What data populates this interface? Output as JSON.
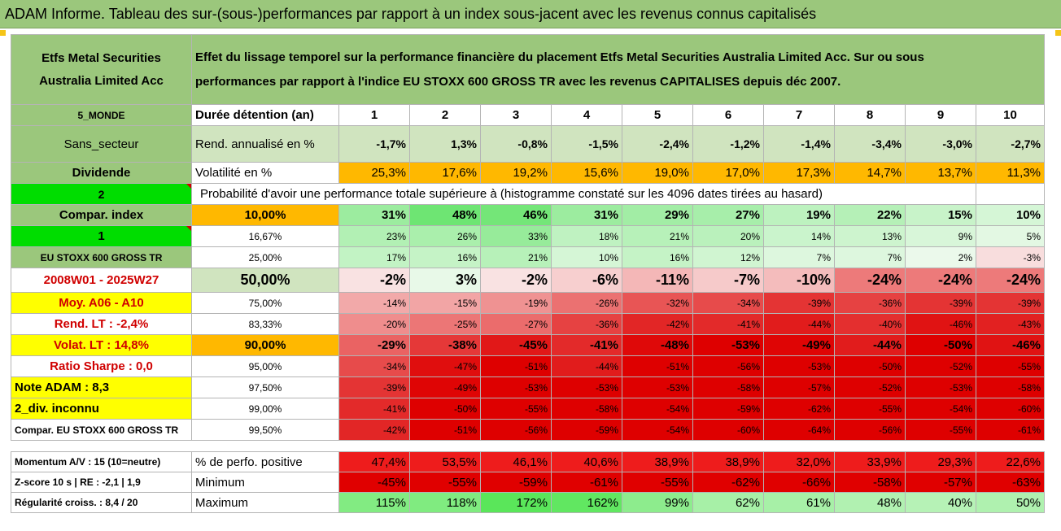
{
  "title": "ADAM Informe. Tableau des sur-(sous-)performances par rapport à un index sous-jacent avec les revenus connus capitalisés",
  "fund_name": [
    "Etfs Metal Securities",
    "Australia Limited Acc"
  ],
  "description": [
    "Effet du lissage temporel sur la performance financière du placement Etfs Metal Securities Australia Limited Acc. Sur ou sous",
    "performances par rapport à l'indice EU STOXX 600 GROSS TR avec les revenus CAPITALISES depuis déc 2007."
  ],
  "rows": {
    "duration": {
      "tag": "5_MONDE",
      "label": "Durée détention (an)",
      "values": [
        "1",
        "2",
        "3",
        "4",
        "5",
        "6",
        "7",
        "8",
        "9",
        "10"
      ]
    },
    "rend": {
      "tag": "Sans_secteur",
      "label": "Rend. annualisé en %",
      "values": [
        "-1,7%",
        "1,3%",
        "-0,8%",
        "-1,5%",
        "-2,4%",
        "-1,2%",
        "-1,4%",
        "-3,4%",
        "-3,0%",
        "-2,7%"
      ]
    },
    "vol": {
      "tag": "Dividende",
      "label": "Volatilité en %",
      "values": [
        "25,3%",
        "17,6%",
        "19,2%",
        "15,6%",
        "19,0%",
        "17,0%",
        "17,3%",
        "14,7%",
        "13,7%",
        "11,3%"
      ]
    },
    "prob": {
      "tag": "2",
      "label": "Probabilité d'avoir une performance totale supérieure à (histogramme constaté sur les 4096 dates tirées au hasard)"
    }
  },
  "quantile_rows": [
    {
      "tag": "Compar. index",
      "pct": "10,00%",
      "values": [
        "31%",
        "48%",
        "46%",
        "31%",
        "29%",
        "27%",
        "19%",
        "22%",
        "15%",
        "10%"
      ]
    },
    {
      "tag": "1",
      "pct": "16,67%",
      "values": [
        "23%",
        "26%",
        "33%",
        "18%",
        "21%",
        "20%",
        "14%",
        "13%",
        "9%",
        "5%"
      ]
    },
    {
      "tag": "EU STOXX 600 GROSS TR",
      "pct": "25,00%",
      "values": [
        "17%",
        "16%",
        "21%",
        "10%",
        "16%",
        "12%",
        "7%",
        "7%",
        "2%",
        "-3%"
      ]
    },
    {
      "tag": "2008W01 - 2025W27",
      "pct": "50,00%",
      "values": [
        "-2%",
        "3%",
        "-2%",
        "-6%",
        "-11%",
        "-7%",
        "-10%",
        "-24%",
        "-24%",
        "-24%"
      ]
    },
    {
      "tag": "Moy. A06 - A10",
      "pct": "75,00%",
      "values": [
        "-14%",
        "-15%",
        "-19%",
        "-26%",
        "-32%",
        "-34%",
        "-39%",
        "-36%",
        "-39%",
        "-39%"
      ]
    },
    {
      "tag": "Rend. LT :    -2,4%",
      "pct": "83,33%",
      "values": [
        "-20%",
        "-25%",
        "-27%",
        "-36%",
        "-42%",
        "-41%",
        "-44%",
        "-40%",
        "-46%",
        "-43%"
      ]
    },
    {
      "tag": "Volat. LT :    14,8%",
      "pct": "90,00%",
      "values": [
        "-29%",
        "-38%",
        "-45%",
        "-41%",
        "-48%",
        "-53%",
        "-49%",
        "-44%",
        "-50%",
        "-46%"
      ]
    },
    {
      "tag": "Ratio Sharpe :    0,0",
      "pct": "95,00%",
      "values": [
        "-34%",
        "-47%",
        "-51%",
        "-44%",
        "-51%",
        "-56%",
        "-53%",
        "-50%",
        "-52%",
        "-55%"
      ]
    },
    {
      "tag": "Note ADAM : 8,3",
      "pct": "97,50%",
      "values": [
        "-39%",
        "-49%",
        "-53%",
        "-53%",
        "-53%",
        "-58%",
        "-57%",
        "-52%",
        "-53%",
        "-58%"
      ]
    },
    {
      "tag": "2_div. inconnu",
      "pct": "99,00%",
      "values": [
        "-41%",
        "-50%",
        "-55%",
        "-58%",
        "-54%",
        "-59%",
        "-62%",
        "-55%",
        "-54%",
        "-60%"
      ]
    },
    {
      "tag": "Compar. EU STOXX 600 GROSS TR",
      "pct": "99,50%",
      "values": [
        "-42%",
        "-51%",
        "-56%",
        "-59%",
        "-54%",
        "-60%",
        "-64%",
        "-56%",
        "-55%",
        "-61%"
      ]
    }
  ],
  "bottom_rows": [
    {
      "tag": "Momentum A/V : 15 (10=neutre)",
      "label": "% de perfo. positive",
      "values": [
        "47,4%",
        "53,5%",
        "46,1%",
        "40,6%",
        "38,9%",
        "38,9%",
        "32,0%",
        "33,9%",
        "29,3%",
        "22,6%"
      ]
    },
    {
      "tag": "Z-score 10 s | RE : -2,1 | 1,9",
      "label": "Minimum",
      "values": [
        "-45%",
        "-55%",
        "-59%",
        "-61%",
        "-55%",
        "-62%",
        "-66%",
        "-58%",
        "-57%",
        "-63%"
      ]
    },
    {
      "tag": "Régularité croiss. : 8,4 / 20",
      "label": "Maximum",
      "values": [
        "115%",
        "118%",
        "172%",
        "162%",
        "99%",
        "62%",
        "61%",
        "48%",
        "40%",
        "50%"
      ]
    }
  ],
  "colors": {
    "header_green": "#9bc77c",
    "light_green": "#d0e4bf",
    "bright_green": "#00dd00",
    "yellow": "#ffff00",
    "orange": "#ffb800",
    "red_text": "#d00000"
  }
}
